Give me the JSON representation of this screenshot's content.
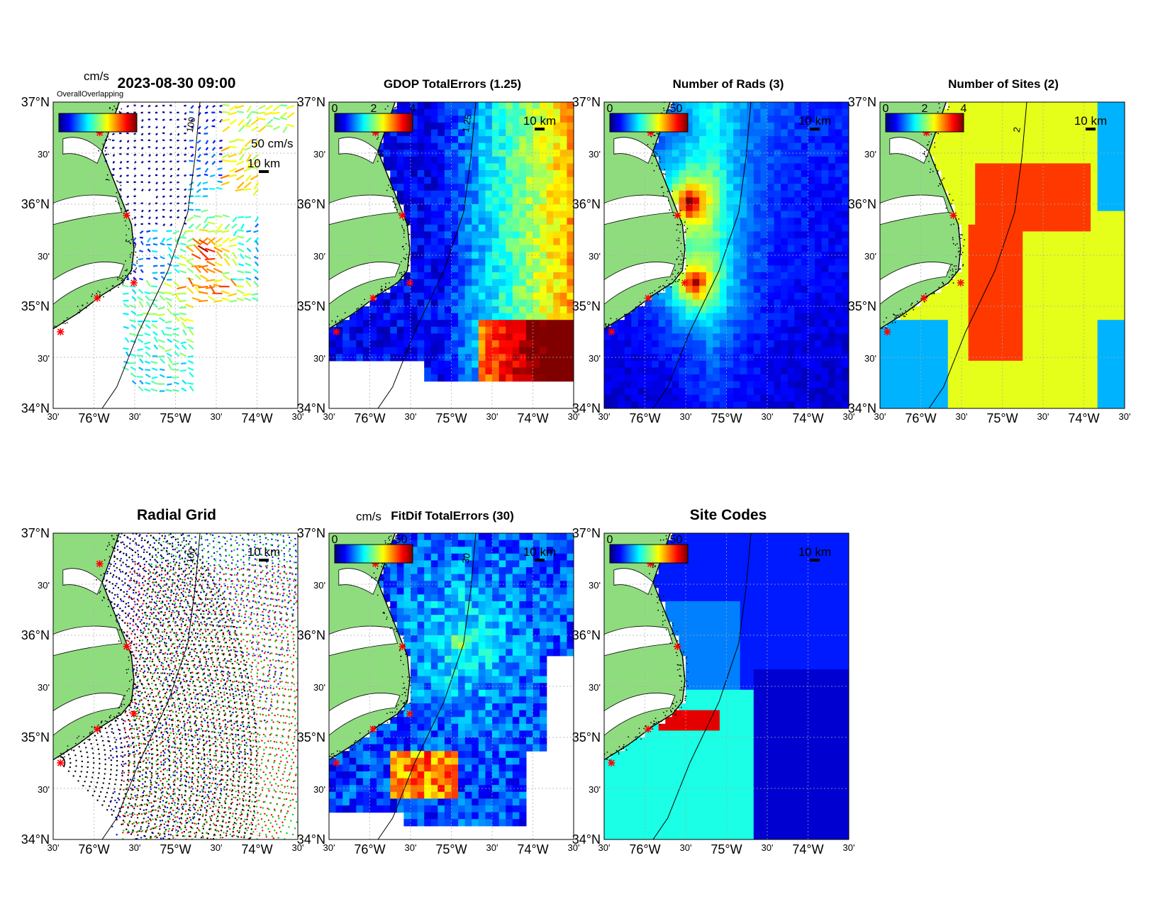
{
  "figure": {
    "timestamp": "2023-08-30 09:00",
    "colors": {
      "land": "#8fdc7f",
      "coast": "#000000",
      "site_marker": "#ff0000",
      "grid": "#aaaaaa"
    },
    "common_axes": {
      "lat_ticks": [
        "37°N",
        "30'",
        "36°N",
        "30'",
        "35°N",
        "30'",
        "34°N"
      ],
      "lon_ticks": [
        "30'",
        "76°W",
        "30'",
        "75°W",
        "30'",
        "74°W",
        "30'"
      ],
      "lon_range": [
        -76.5,
        -73.5
      ],
      "lat_range": [
        34.0,
        37.0
      ],
      "scale_label": "10 km"
    }
  },
  "chart_data": [
    {
      "type": "map",
      "kind": "vectors",
      "title": "",
      "colorbar": {
        "unit": "cm/s",
        "labels": []
      },
      "vector_scale": "50 cm/s",
      "contour_label": "100",
      "overlap_text": "OverallOverlapping"
    },
    {
      "type": "heatmap",
      "title": "GDOP TotalErrors (1.25)",
      "colorbar": {
        "unit": "",
        "labels": [
          "0",
          "2",
          "4"
        ]
      },
      "contour_label": "1.25"
    },
    {
      "type": "heatmap",
      "title": "Number of Rads (3)",
      "colorbar": {
        "unit": "",
        "labels": [
          "0",
          "50"
        ]
      }
    },
    {
      "type": "heatmap",
      "title": "Number of Sites (2)",
      "colorbar": {
        "unit": "",
        "labels": [
          "0",
          "2",
          "4"
        ]
      },
      "contour_label": "2"
    },
    {
      "type": "map",
      "kind": "radial_grid",
      "title": "Radial Grid",
      "contour_label": "100"
    },
    {
      "type": "heatmap",
      "title": "FitDif TotalErrors (30)",
      "colorbar": {
        "unit": "cm/s",
        "labels": [
          "0",
          "50"
        ]
      },
      "contour_label": "30"
    },
    {
      "type": "heatmap",
      "title": "Site Codes",
      "colorbar": {
        "unit": "",
        "labels": [
          "0",
          "50"
        ]
      }
    }
  ]
}
